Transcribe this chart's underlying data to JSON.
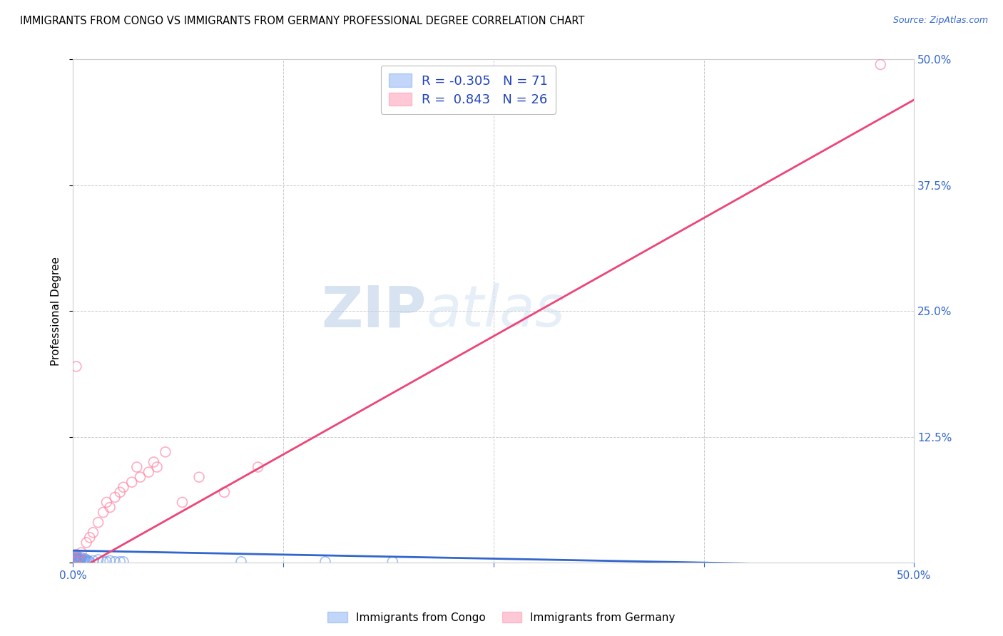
{
  "title": "IMMIGRANTS FROM CONGO VS IMMIGRANTS FROM GERMANY PROFESSIONAL DEGREE CORRELATION CHART",
  "source": "Source: ZipAtlas.com",
  "ylabel": "Professional Degree",
  "xlim": [
    0.0,
    0.5
  ],
  "ylim": [
    0.0,
    0.5
  ],
  "xticks": [
    0.0,
    0.125,
    0.25,
    0.375,
    0.5
  ],
  "yticks": [
    0.0,
    0.125,
    0.25,
    0.375,
    0.5
  ],
  "xticklabels": [
    "0.0%",
    "",
    "",
    "",
    "50.0%"
  ],
  "right_yticklabels": [
    "",
    "12.5%",
    "25.0%",
    "37.5%",
    "50.0%"
  ],
  "congo_color": "#6699ee",
  "germany_color": "#ff7799",
  "congo_R": -0.305,
  "congo_N": 71,
  "germany_R": 0.843,
  "germany_N": 26,
  "watermark_zip": "ZIP",
  "watermark_atlas": "atlas",
  "legend_label_congo": "Immigrants from Congo",
  "legend_label_germany": "Immigrants from Germany",
  "congo_line_x": [
    0.0,
    0.5
  ],
  "congo_line_y": [
    0.012,
    -0.004
  ],
  "germany_line_x": [
    0.0,
    0.5
  ],
  "germany_line_y": [
    -0.01,
    0.46
  ],
  "congo_x": [
    0.001,
    0.001,
    0.001,
    0.001,
    0.001,
    0.001,
    0.001,
    0.001,
    0.001,
    0.001,
    0.001,
    0.001,
    0.001,
    0.001,
    0.001,
    0.001,
    0.001,
    0.001,
    0.001,
    0.001,
    0.001,
    0.001,
    0.001,
    0.001,
    0.001,
    0.001,
    0.001,
    0.001,
    0.001,
    0.001,
    0.002,
    0.002,
    0.002,
    0.002,
    0.002,
    0.002,
    0.002,
    0.002,
    0.002,
    0.002,
    0.003,
    0.003,
    0.003,
    0.003,
    0.003,
    0.004,
    0.004,
    0.004,
    0.004,
    0.005,
    0.005,
    0.005,
    0.006,
    0.006,
    0.007,
    0.007,
    0.008,
    0.008,
    0.009,
    0.01,
    0.012,
    0.015,
    0.018,
    0.02,
    0.022,
    0.025,
    0.028,
    0.03,
    0.19,
    0.15,
    0.1
  ],
  "congo_y": [
    0.001,
    0.001,
    0.001,
    0.001,
    0.001,
    0.001,
    0.001,
    0.001,
    0.001,
    0.001,
    0.001,
    0.001,
    0.001,
    0.001,
    0.001,
    0.002,
    0.002,
    0.002,
    0.002,
    0.002,
    0.002,
    0.002,
    0.003,
    0.003,
    0.003,
    0.003,
    0.004,
    0.004,
    0.004,
    0.005,
    0.001,
    0.001,
    0.002,
    0.002,
    0.003,
    0.004,
    0.005,
    0.006,
    0.007,
    0.008,
    0.001,
    0.002,
    0.003,
    0.004,
    0.005,
    0.001,
    0.002,
    0.003,
    0.004,
    0.002,
    0.003,
    0.005,
    0.001,
    0.003,
    0.002,
    0.004,
    0.001,
    0.003,
    0.002,
    0.001,
    0.002,
    0.003,
    0.001,
    0.001,
    0.002,
    0.001,
    0.001,
    0.001,
    0.001,
    0.001,
    0.001
  ],
  "germany_x": [
    0.001,
    0.003,
    0.005,
    0.008,
    0.01,
    0.012,
    0.015,
    0.018,
    0.02,
    0.022,
    0.025,
    0.028,
    0.03,
    0.035,
    0.038,
    0.04,
    0.045,
    0.048,
    0.05,
    0.055,
    0.065,
    0.075,
    0.09,
    0.11,
    0.002,
    0.48
  ],
  "germany_y": [
    0.001,
    0.005,
    0.01,
    0.02,
    0.025,
    0.03,
    0.04,
    0.05,
    0.06,
    0.055,
    0.065,
    0.07,
    0.075,
    0.08,
    0.095,
    0.085,
    0.09,
    0.1,
    0.095,
    0.11,
    0.06,
    0.085,
    0.07,
    0.095,
    0.195,
    0.495
  ]
}
